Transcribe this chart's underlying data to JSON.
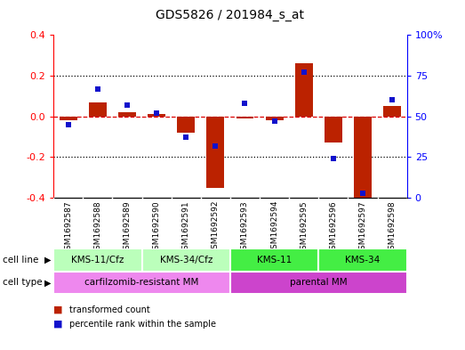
{
  "title": "GDS5826 / 201984_s_at",
  "samples": [
    "GSM1692587",
    "GSM1692588",
    "GSM1692589",
    "GSM1692590",
    "GSM1692591",
    "GSM1692592",
    "GSM1692593",
    "GSM1692594",
    "GSM1692595",
    "GSM1692596",
    "GSM1692597",
    "GSM1692598"
  ],
  "transformed_count": [
    -0.02,
    0.07,
    0.02,
    0.01,
    -0.08,
    -0.35,
    -0.01,
    -0.02,
    0.26,
    -0.13,
    -0.4,
    0.05
  ],
  "percentile_rank": [
    45,
    67,
    57,
    52,
    37,
    32,
    58,
    47,
    77,
    24,
    3,
    60
  ],
  "ylim_left": [
    -0.4,
    0.4
  ],
  "ylim_right": [
    0,
    100
  ],
  "yticks_left": [
    -0.4,
    -0.2,
    0.0,
    0.2,
    0.4
  ],
  "yticks_right": [
    0,
    25,
    50,
    75,
    100
  ],
  "bar_color": "#bb2200",
  "dot_color": "#1111cc",
  "zero_line_color": "#dd0000",
  "dotted_line_color": "#000000",
  "cell_line_groups": [
    {
      "label": "KMS-11/Cfz",
      "start": 0,
      "end": 2,
      "color": "#bbffbb"
    },
    {
      "label": "KMS-34/Cfz",
      "start": 3,
      "end": 5,
      "color": "#bbffbb"
    },
    {
      "label": "KMS-11",
      "start": 6,
      "end": 8,
      "color": "#44ee44"
    },
    {
      "label": "KMS-34",
      "start": 9,
      "end": 11,
      "color": "#44ee44"
    }
  ],
  "cell_type_groups": [
    {
      "label": "carfilzomib-resistant MM",
      "start": 0,
      "end": 5,
      "color": "#ee88ee"
    },
    {
      "label": "parental MM",
      "start": 6,
      "end": 11,
      "color": "#cc44cc"
    }
  ],
  "legend_items": [
    {
      "label": "transformed count",
      "color": "#bb2200"
    },
    {
      "label": "percentile rank within the sample",
      "color": "#1111cc"
    }
  ],
  "sample_bg_color": "#cccccc",
  "bg_color": "#ffffff"
}
